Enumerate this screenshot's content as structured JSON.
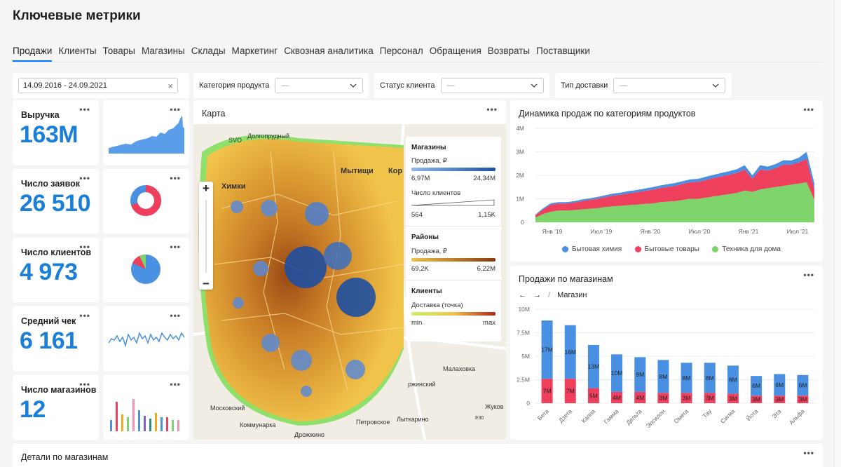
{
  "page_title": "Ключевые метрики",
  "tabs": [
    "Продажи",
    "Клиенты",
    "Товары",
    "Магазины",
    "Склады",
    "Маркетинг",
    "Сквозная аналитика",
    "Персонал",
    "Обращения",
    "Возвраты",
    "Поставщики"
  ],
  "filters": {
    "date_range": "14.09.2016 - 24.09.2021",
    "category_label": "Категория продукта",
    "category_value": "—",
    "status_label": "Статус клиента",
    "status_value": "—",
    "delivery_label": "Тип доставки",
    "delivery_value": "—"
  },
  "menu_glyph": "•••",
  "kpis": [
    {
      "label": "Выручка",
      "value": "163M"
    },
    {
      "label": "Число заявок",
      "value": "26 510"
    },
    {
      "label": "Число клиентов",
      "value": "4 973"
    },
    {
      "label": "Средний чек",
      "value": "6 161"
    },
    {
      "label": "Число магазинов",
      "value": "12"
    }
  ],
  "map": {
    "title": "Карта",
    "zoom_in": "+",
    "zoom_out": "−",
    "places": [
      "SVO",
      "Долгопрудный",
      "Мытищи",
      "Кор",
      "Химки",
      "Малаховка",
      "ржинский",
      "Жуков",
      "Московский",
      "Лыткарино",
      "Коммунарка",
      "Петровское",
      "Дрожжино",
      "E30"
    ],
    "legend": {
      "stores_title": "Магазины",
      "stores_metric": "Продажа, ₽",
      "stores_min": "6,97M",
      "stores_max": "24,34M",
      "clients_metric": "Число клиентов",
      "clients_min": "564",
      "clients_max": "1,15K",
      "districts_title": "Районы",
      "districts_metric": "Продажа, ₽",
      "districts_min": "69,2K",
      "districts_max": "6,22M",
      "customers_title": "Клиенты",
      "customers_metric": "Доставка (точка)",
      "customers_min": "min",
      "customers_max": "max"
    },
    "colors": {
      "store_bubble": "#1e4fa0",
      "district_low": "#f0c34a",
      "district_high": "#8a3b10"
    }
  },
  "dynamics": {
    "title": "Динамика продаж по категориям продуктов",
    "chart_data": {
      "type": "area",
      "title": "Динамика продаж по категориям продуктов",
      "ylim": [
        0,
        4000000
      ],
      "y_ticks": [
        "4M",
        "3M",
        "2M",
        "1M",
        "0"
      ],
      "x_ticks": [
        "Янв '19",
        "Июл '19",
        "Янв '20",
        "Июл '20",
        "Янв '21",
        "Июл '21"
      ],
      "stacked": true,
      "x": [
        0,
        1,
        2,
        3,
        4,
        5,
        6,
        7,
        8,
        9,
        10,
        11,
        12,
        13,
        14,
        15,
        16,
        17,
        18,
        19,
        20,
        21,
        22,
        23,
        24,
        25,
        26,
        27,
        28,
        29,
        30,
        31,
        32,
        33,
        34,
        35,
        36
      ],
      "series": [
        {
          "name": "Техника для дома",
          "color": "#7ed36b",
          "values": [
            0.2,
            0.35,
            0.45,
            0.5,
            0.5,
            0.52,
            0.55,
            0.58,
            0.6,
            0.65,
            0.68,
            0.7,
            0.73,
            0.75,
            0.78,
            0.8,
            0.85,
            0.88,
            0.9,
            0.95,
            1.0,
            1.0,
            1.05,
            1.1,
            1.15,
            1.2,
            1.25,
            1.35,
            1.3,
            1.4,
            1.45,
            1.5,
            1.55,
            1.6,
            1.65,
            1.7,
            0.95
          ]
        },
        {
          "name": "Бытовые товары",
          "color": "#ee3f5d",
          "values": [
            0.1,
            0.2,
            0.3,
            0.3,
            0.3,
            0.32,
            0.35,
            0.37,
            0.4,
            0.42,
            0.45,
            0.47,
            0.5,
            0.52,
            0.55,
            0.58,
            0.6,
            0.62,
            0.65,
            0.68,
            0.7,
            0.72,
            0.75,
            0.78,
            0.8,
            0.82,
            0.85,
            0.9,
            0.55,
            0.85,
            0.75,
            0.8,
            0.9,
            0.85,
            0.9,
            1.0,
            0.45
          ]
        },
        {
          "name": "Бытовая химия",
          "color": "#4a90e2",
          "values": [
            0.03,
            0.05,
            0.06,
            0.06,
            0.06,
            0.06,
            0.07,
            0.07,
            0.08,
            0.08,
            0.09,
            0.09,
            0.1,
            0.1,
            0.1,
            0.11,
            0.11,
            0.12,
            0.12,
            0.12,
            0.13,
            0.13,
            0.14,
            0.14,
            0.15,
            0.15,
            0.16,
            0.18,
            0.15,
            0.18,
            0.17,
            0.18,
            0.19,
            0.18,
            0.2,
            0.3,
            0.25
          ]
        }
      ],
      "legend_position": "bottom"
    }
  },
  "stores": {
    "title": "Продажи по магазинам",
    "breadcrumb_sep": "/",
    "breadcrumb": "Магазин",
    "chart_data": {
      "type": "bar",
      "stacked": true,
      "ylim": [
        0,
        10000000
      ],
      "y_ticks": [
        "10M",
        "7,5M",
        "5M",
        "2,5M",
        "0"
      ],
      "categories": [
        "Бета",
        "Дзета",
        "Каппа",
        "Гамма",
        "Дельта",
        "Эпсилон",
        "Омега",
        "Тау",
        "Сигма",
        "Йота",
        "Эта",
        "Альфа"
      ],
      "series": [
        {
          "color": "#ee3f5d",
          "values": [
            2.6,
            2.6,
            1.6,
            1.2,
            1.2,
            1.1,
            1.1,
            1.1,
            1.0,
            0.8,
            0.8,
            0.8
          ],
          "labels": [
            "7M",
            "7M",
            "5M",
            "4M",
            "4M",
            "3M",
            "3M",
            "3M",
            "3M",
            "3M",
            "3M",
            "3M"
          ]
        },
        {
          "color": "#4a90e2",
          "values": [
            6.2,
            5.7,
            4.6,
            4.0,
            3.7,
            3.5,
            3.2,
            3.2,
            3.0,
            2.1,
            2.3,
            2.2
          ],
          "labels": [
            "17M",
            "16M",
            "13M",
            "10M",
            "9M",
            "8M",
            "8M",
            "8M",
            "8M",
            "6M",
            "6M",
            "6M"
          ]
        }
      ]
    }
  },
  "details": {
    "title": "Детали по магазинам"
  }
}
